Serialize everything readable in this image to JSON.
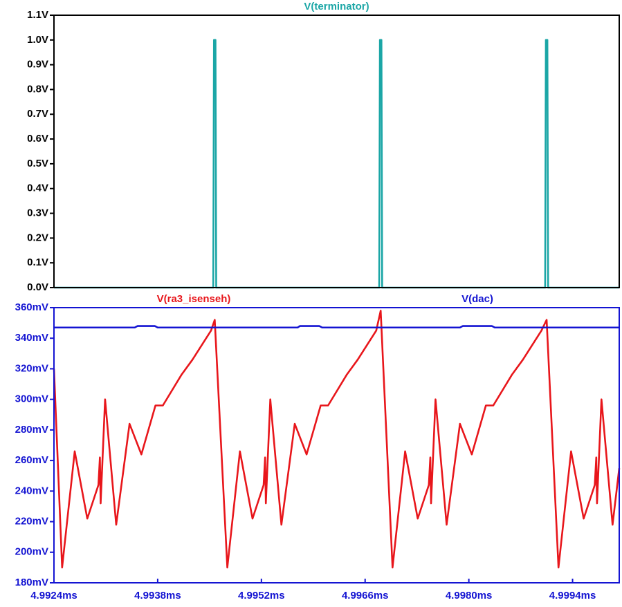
{
  "chart_data": [
    {
      "type": "line",
      "xlim": [
        4.9924,
        5.00003
      ],
      "ylim": [
        0,
        1.1
      ],
      "yticks": [
        {
          "value": 0,
          "label": "0.0V"
        },
        {
          "value": 0.1,
          "label": "0.1V"
        },
        {
          "value": 0.2,
          "label": "0.2V"
        },
        {
          "value": 0.3,
          "label": "0.3V"
        },
        {
          "value": 0.4,
          "label": "0.4V"
        },
        {
          "value": 0.5,
          "label": "0.5V"
        },
        {
          "value": 0.6,
          "label": "0.6V"
        },
        {
          "value": 0.7,
          "label": "0.7V"
        },
        {
          "value": 0.8,
          "label": "0.8V"
        },
        {
          "value": 0.9,
          "label": "0.9V"
        },
        {
          "value": 1.0,
          "label": "1.0V"
        },
        {
          "value": 1.1,
          "label": "1.1V"
        }
      ],
      "axis_color": "#000000",
      "series": [
        {
          "name": "V(terminator)",
          "color": "#1ba6a6",
          "x": [
            4.9924,
            4.99455,
            4.99456,
            4.99458,
            4.99459,
            4.99679,
            4.9968,
            4.99682,
            4.99683,
            4.99903,
            4.99904,
            4.99906,
            4.99907,
            5.00003
          ],
          "values": [
            0,
            0,
            1,
            1,
            0,
            0,
            1,
            1,
            0,
            0,
            1,
            1,
            0,
            0
          ]
        }
      ]
    },
    {
      "type": "line",
      "xlim": [
        4.9924,
        5.00003
      ],
      "ylim": [
        180,
        360
      ],
      "yticks": [
        {
          "value": 180,
          "label": "180mV"
        },
        {
          "value": 200,
          "label": "200mV"
        },
        {
          "value": 220,
          "label": "220mV"
        },
        {
          "value": 240,
          "label": "240mV"
        },
        {
          "value": 260,
          "label": "260mV"
        },
        {
          "value": 280,
          "label": "280mV"
        },
        {
          "value": 300,
          "label": "300mV"
        },
        {
          "value": 320,
          "label": "320mV"
        },
        {
          "value": 340,
          "label": "340mV"
        },
        {
          "value": 360,
          "label": "360mV"
        }
      ],
      "xticks": [
        {
          "value": 4.9924,
          "label": "4.9924ms"
        },
        {
          "value": 4.9938,
          "label": "4.9938ms"
        },
        {
          "value": 4.9952,
          "label": "4.9952ms"
        },
        {
          "value": 4.9966,
          "label": "4.9966ms"
        },
        {
          "value": 4.998,
          "label": "4.9980ms"
        },
        {
          "value": 4.9994,
          "label": "4.9994ms"
        }
      ],
      "axis_color": "#1414d2",
      "series": [
        {
          "name": "V(ra3_isenseh)",
          "color": "#e8161b",
          "x": [
            4.9924,
            4.99251,
            4.99268,
            4.99285,
            4.993,
            4.99302,
            4.99303,
            4.99309,
            4.99324,
            4.99342,
            4.99358,
            4.99377,
            4.99387,
            4.99412,
            4.99427,
            4.99452,
            4.99457,
            4.99474,
            4.99491,
            4.99508,
            4.99523,
            4.99525,
            4.99526,
            4.99532,
            4.99547,
            4.99565,
            4.99581,
            4.996,
            4.9961,
            4.99635,
            4.9965,
            4.99675,
            4.99681,
            4.99697,
            4.99714,
            4.99731,
            4.99746,
            4.99748,
            4.99749,
            4.99755,
            4.9977,
            4.99788,
            4.99804,
            4.99823,
            4.99833,
            4.99858,
            4.99873,
            4.99898,
            4.99905,
            4.99921,
            4.99938,
            4.99955,
            4.9997,
            4.99972,
            4.99973,
            4.99979,
            4.99994,
            5.00003
          ],
          "values": [
            320,
            190,
            266,
            222,
            244,
            262,
            232,
            300,
            218,
            284,
            264,
            296,
            296,
            316,
            326,
            345,
            352,
            190,
            266,
            222,
            244,
            262,
            232,
            300,
            218,
            284,
            264,
            296,
            296,
            316,
            326,
            345,
            358,
            190,
            266,
            222,
            244,
            262,
            232,
            300,
            218,
            284,
            264,
            296,
            296,
            316,
            326,
            345,
            352,
            190,
            266,
            222,
            244,
            262,
            232,
            300,
            218,
            255
          ]
        },
        {
          "name": "V(dac)",
          "color": "#1414d2",
          "x": [
            4.9924,
            4.99349,
            4.99353,
            4.99376,
            4.9938,
            4.99569,
            4.99572,
            4.99598,
            4.99602,
            4.99788,
            4.99792,
            4.99831,
            4.99835,
            5.00003
          ],
          "values": [
            347,
            347,
            348,
            348,
            347,
            347,
            348,
            348,
            347,
            347,
            348,
            348,
            347,
            347
          ]
        }
      ]
    }
  ]
}
